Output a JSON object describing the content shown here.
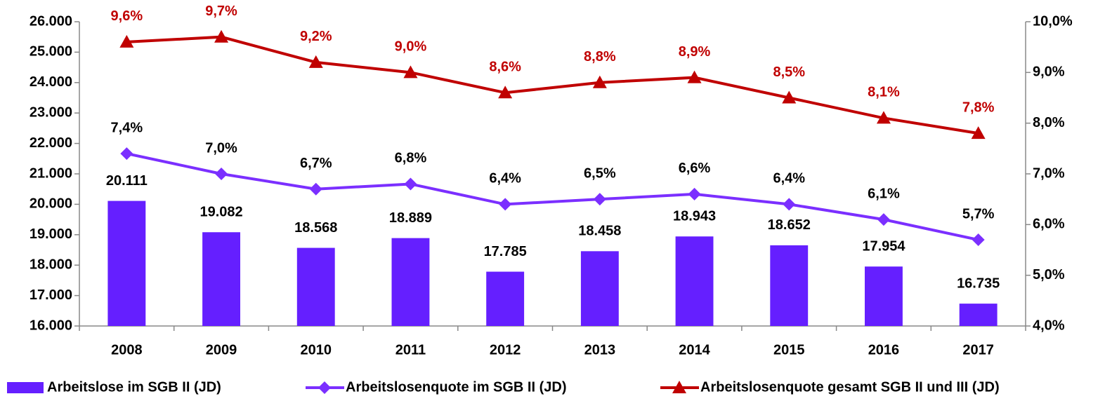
{
  "chart_data": {
    "type": "bar",
    "categories": [
      "2008",
      "2009",
      "2010",
      "2011",
      "2012",
      "2013",
      "2014",
      "2015",
      "2016",
      "2017"
    ],
    "series": [
      {
        "name": "Arbeitslose im SGB II (JD)",
        "type": "bar",
        "color": "#651fff",
        "label_color": "#000000",
        "values": [
          20111,
          19082,
          18568,
          18889,
          17785,
          18458,
          18943,
          18652,
          17954,
          16735
        ],
        "value_labels": [
          "20.111",
          "19.082",
          "18.568",
          "18.889",
          "17.785",
          "18.458",
          "18.943",
          "18.652",
          "17.954",
          "16.735"
        ]
      },
      {
        "name": "Arbeitslosenquote im SGB II (JD)",
        "type": "line",
        "axis": "y2",
        "marker": "diamond",
        "color": "#7b2fff",
        "label_color": "#000000",
        "values": [
          7.4,
          7.0,
          6.7,
          6.8,
          6.4,
          6.5,
          6.6,
          6.4,
          6.1,
          5.7
        ],
        "value_labels": [
          "7,4%",
          "7,0%",
          "6,7%",
          "6,8%",
          "6,4%",
          "6,5%",
          "6,6%",
          "6,4%",
          "6,1%",
          "5,7%"
        ]
      },
      {
        "name": "Arbeitslosenquote gesamt SGB II und III (JD)",
        "type": "line",
        "axis": "y2",
        "marker": "triangle",
        "color": "#c00000",
        "label_color": "#c00000",
        "values": [
          9.6,
          9.7,
          9.2,
          9.0,
          8.6,
          8.8,
          8.9,
          8.5,
          8.1,
          7.8
        ],
        "value_labels": [
          "9,6%",
          "9,7%",
          "9,2%",
          "9,0%",
          "8,6%",
          "8,8%",
          "8,9%",
          "8,5%",
          "8,1%",
          "7,8%"
        ]
      }
    ],
    "ylim": [
      16000,
      26000
    ],
    "yticks": [
      {
        "value": 16000,
        "label": "16.000"
      },
      {
        "value": 17000,
        "label": "17.000"
      },
      {
        "value": 18000,
        "label": "18.000"
      },
      {
        "value": 19000,
        "label": "19.000"
      },
      {
        "value": 20000,
        "label": "20.000"
      },
      {
        "value": 21000,
        "label": "21.000"
      },
      {
        "value": 22000,
        "label": "22.000"
      },
      {
        "value": 23000,
        "label": "23.000"
      },
      {
        "value": 24000,
        "label": "24.000"
      },
      {
        "value": 25000,
        "label": "25.000"
      },
      {
        "value": 26000,
        "label": "26.000"
      }
    ],
    "y2lim": [
      4,
      10
    ],
    "y2ticks": [
      {
        "value": 4,
        "label": "4,0%"
      },
      {
        "value": 5,
        "label": "5,0%"
      },
      {
        "value": 6,
        "label": "6,0%"
      },
      {
        "value": 7,
        "label": "7,0%"
      },
      {
        "value": 8,
        "label": "8,0%"
      },
      {
        "value": 9,
        "label": "9,0%"
      },
      {
        "value": 10,
        "label": "10,0%"
      }
    ],
    "legend": "bottom"
  }
}
